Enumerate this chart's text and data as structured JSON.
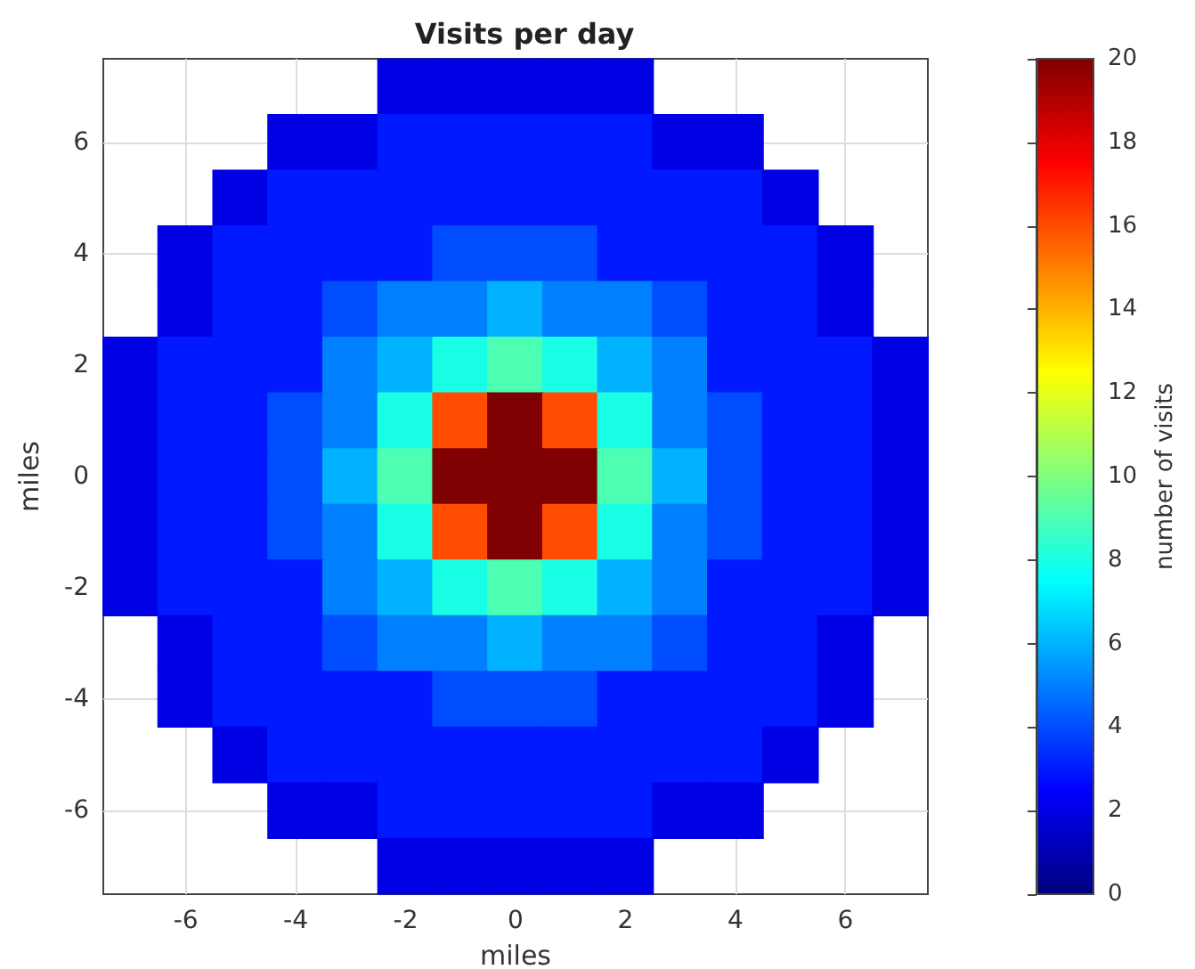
{
  "chart_data": {
    "type": "scatter",
    "title": "Visits per day",
    "xlabel": "miles",
    "ylabel": "miles",
    "clabel": "number of visits",
    "marker": "square",
    "grid": true,
    "xlim": [
      -7.5,
      7.5
    ],
    "ylim": [
      -7.5,
      7.5
    ],
    "xticks": [
      -6,
      -4,
      -2,
      0,
      2,
      4,
      6
    ],
    "yticks": [
      -6,
      -4,
      -2,
      0,
      2,
      4,
      6
    ],
    "clim": [
      0,
      20
    ],
    "cticks": [
      0,
      2,
      4,
      6,
      8,
      10,
      12,
      14,
      16,
      18,
      20
    ],
    "x": [
      -2,
      -1,
      0,
      1,
      2,
      -4,
      -3,
      -2,
      -1,
      0,
      1,
      2,
      3,
      4,
      -5,
      -4,
      -3,
      -2,
      -1,
      0,
      1,
      2,
      3,
      4,
      5,
      -6,
      -5,
      -4,
      -3,
      -2,
      -1,
      0,
      1,
      2,
      3,
      4,
      5,
      6,
      -6,
      -5,
      -4,
      -3,
      -2,
      -1,
      0,
      1,
      2,
      3,
      4,
      5,
      6,
      -7,
      -6,
      -5,
      -4,
      -3,
      -2,
      -1,
      0,
      1,
      2,
      3,
      4,
      5,
      6,
      7,
      -7,
      -6,
      -5,
      -4,
      -3,
      -2,
      -1,
      0,
      1,
      2,
      3,
      4,
      5,
      6,
      7,
      -7,
      -6,
      -5,
      -4,
      -3,
      -2,
      -1,
      0,
      1,
      2,
      3,
      4,
      5,
      6,
      7,
      -7,
      -6,
      -5,
      -4,
      -3,
      -2,
      -1,
      0,
      1,
      2,
      3,
      4,
      5,
      6,
      7,
      -7,
      -6,
      -5,
      -4,
      -3,
      -2,
      -1,
      0,
      1,
      2,
      3,
      4,
      5,
      6,
      7,
      -6,
      -5,
      -4,
      -3,
      -2,
      -1,
      0,
      1,
      2,
      3,
      4,
      5,
      6,
      -6,
      -5,
      -4,
      -3,
      -2,
      -1,
      0,
      1,
      2,
      3,
      4,
      5,
      6,
      -5,
      -4,
      -3,
      -2,
      -1,
      0,
      1,
      2,
      3,
      4,
      5,
      -4,
      -3,
      -2,
      -1,
      0,
      1,
      2,
      3,
      4,
      -2,
      -1,
      0,
      1,
      2
    ],
    "values": [
      7,
      7,
      7,
      7,
      7,
      6,
      6,
      6,
      6,
      6,
      6,
      6,
      6,
      6,
      5,
      5,
      5,
      5,
      5,
      5,
      5,
      5,
      5,
      5,
      5,
      4,
      4,
      4,
      4,
      4,
      4,
      4,
      4,
      4,
      4,
      4,
      4,
      4,
      3,
      3,
      3,
      3,
      3,
      3,
      3,
      3,
      3,
      3,
      3,
      3,
      3,
      2,
      2,
      2,
      2,
      2,
      2,
      2,
      2,
      2,
      2,
      2,
      2,
      2,
      2,
      2,
      1,
      1,
      1,
      1,
      1,
      1,
      1,
      1,
      1,
      1,
      1,
      1,
      1,
      1,
      1,
      0,
      0,
      0,
      0,
      0,
      0,
      0,
      0,
      0,
      0,
      0,
      0,
      0,
      0,
      0,
      -1,
      -1,
      -1,
      -1,
      -1,
      -1,
      -1,
      -1,
      -1,
      -1,
      -1,
      -1,
      -1,
      -1,
      -1,
      -2,
      -2,
      -2,
      -2,
      -2,
      -2,
      -2,
      -2,
      -2,
      -2,
      -2,
      -2,
      -2,
      -2,
      -2,
      -3,
      -3,
      -3,
      -3,
      -3,
      -3,
      -3,
      -3,
      -3,
      -3,
      -3,
      -3,
      -3,
      -4,
      -4,
      -4,
      -4,
      -4,
      -4,
      -4,
      -4,
      -4,
      -4,
      -4,
      -4,
      -4,
      -5,
      -5,
      -5,
      -5,
      -5,
      -5,
      -5,
      -5,
      -5,
      -5,
      -5,
      -6,
      -6,
      -6,
      -6,
      -6,
      -6,
      -6,
      -6,
      -6,
      -7,
      -7,
      -7,
      -7,
      -7
    ],
    "cvalues": [
      2,
      2,
      2,
      2,
      2,
      2,
      2,
      3,
      3,
      3,
      3,
      3,
      2,
      2,
      2,
      3,
      3,
      3,
      3,
      3,
      3,
      3,
      3,
      3,
      2,
      2,
      3,
      3,
      3,
      3,
      4,
      4,
      4,
      3,
      3,
      3,
      3,
      2,
      2,
      3,
      3,
      4,
      5,
      5,
      6,
      5,
      5,
      4,
      3,
      3,
      2,
      2,
      3,
      3,
      3,
      5,
      6,
      8,
      9,
      8,
      6,
      5,
      3,
      3,
      3,
      2,
      2,
      3,
      3,
      4,
      5,
      8,
      16,
      20,
      16,
      8,
      5,
      4,
      3,
      3,
      2,
      2,
      3,
      3,
      4,
      6,
      9,
      20,
      20,
      20,
      9,
      6,
      4,
      3,
      3,
      2,
      2,
      3,
      3,
      4,
      5,
      8,
      16,
      20,
      16,
      8,
      5,
      4,
      3,
      3,
      2,
      2,
      3,
      3,
      3,
      5,
      6,
      8,
      9,
      8,
      6,
      5,
      3,
      3,
      3,
      2,
      2,
      3,
      3,
      4,
      5,
      5,
      6,
      5,
      5,
      4,
      3,
      3,
      2,
      2,
      3,
      3,
      3,
      3,
      4,
      4,
      4,
      3,
      3,
      3,
      3,
      2,
      2,
      3,
      3,
      3,
      3,
      3,
      3,
      3,
      3,
      3,
      2,
      2,
      2,
      3,
      3,
      3,
      3,
      3,
      2,
      2,
      2,
      2,
      2,
      2,
      2
    ]
  }
}
